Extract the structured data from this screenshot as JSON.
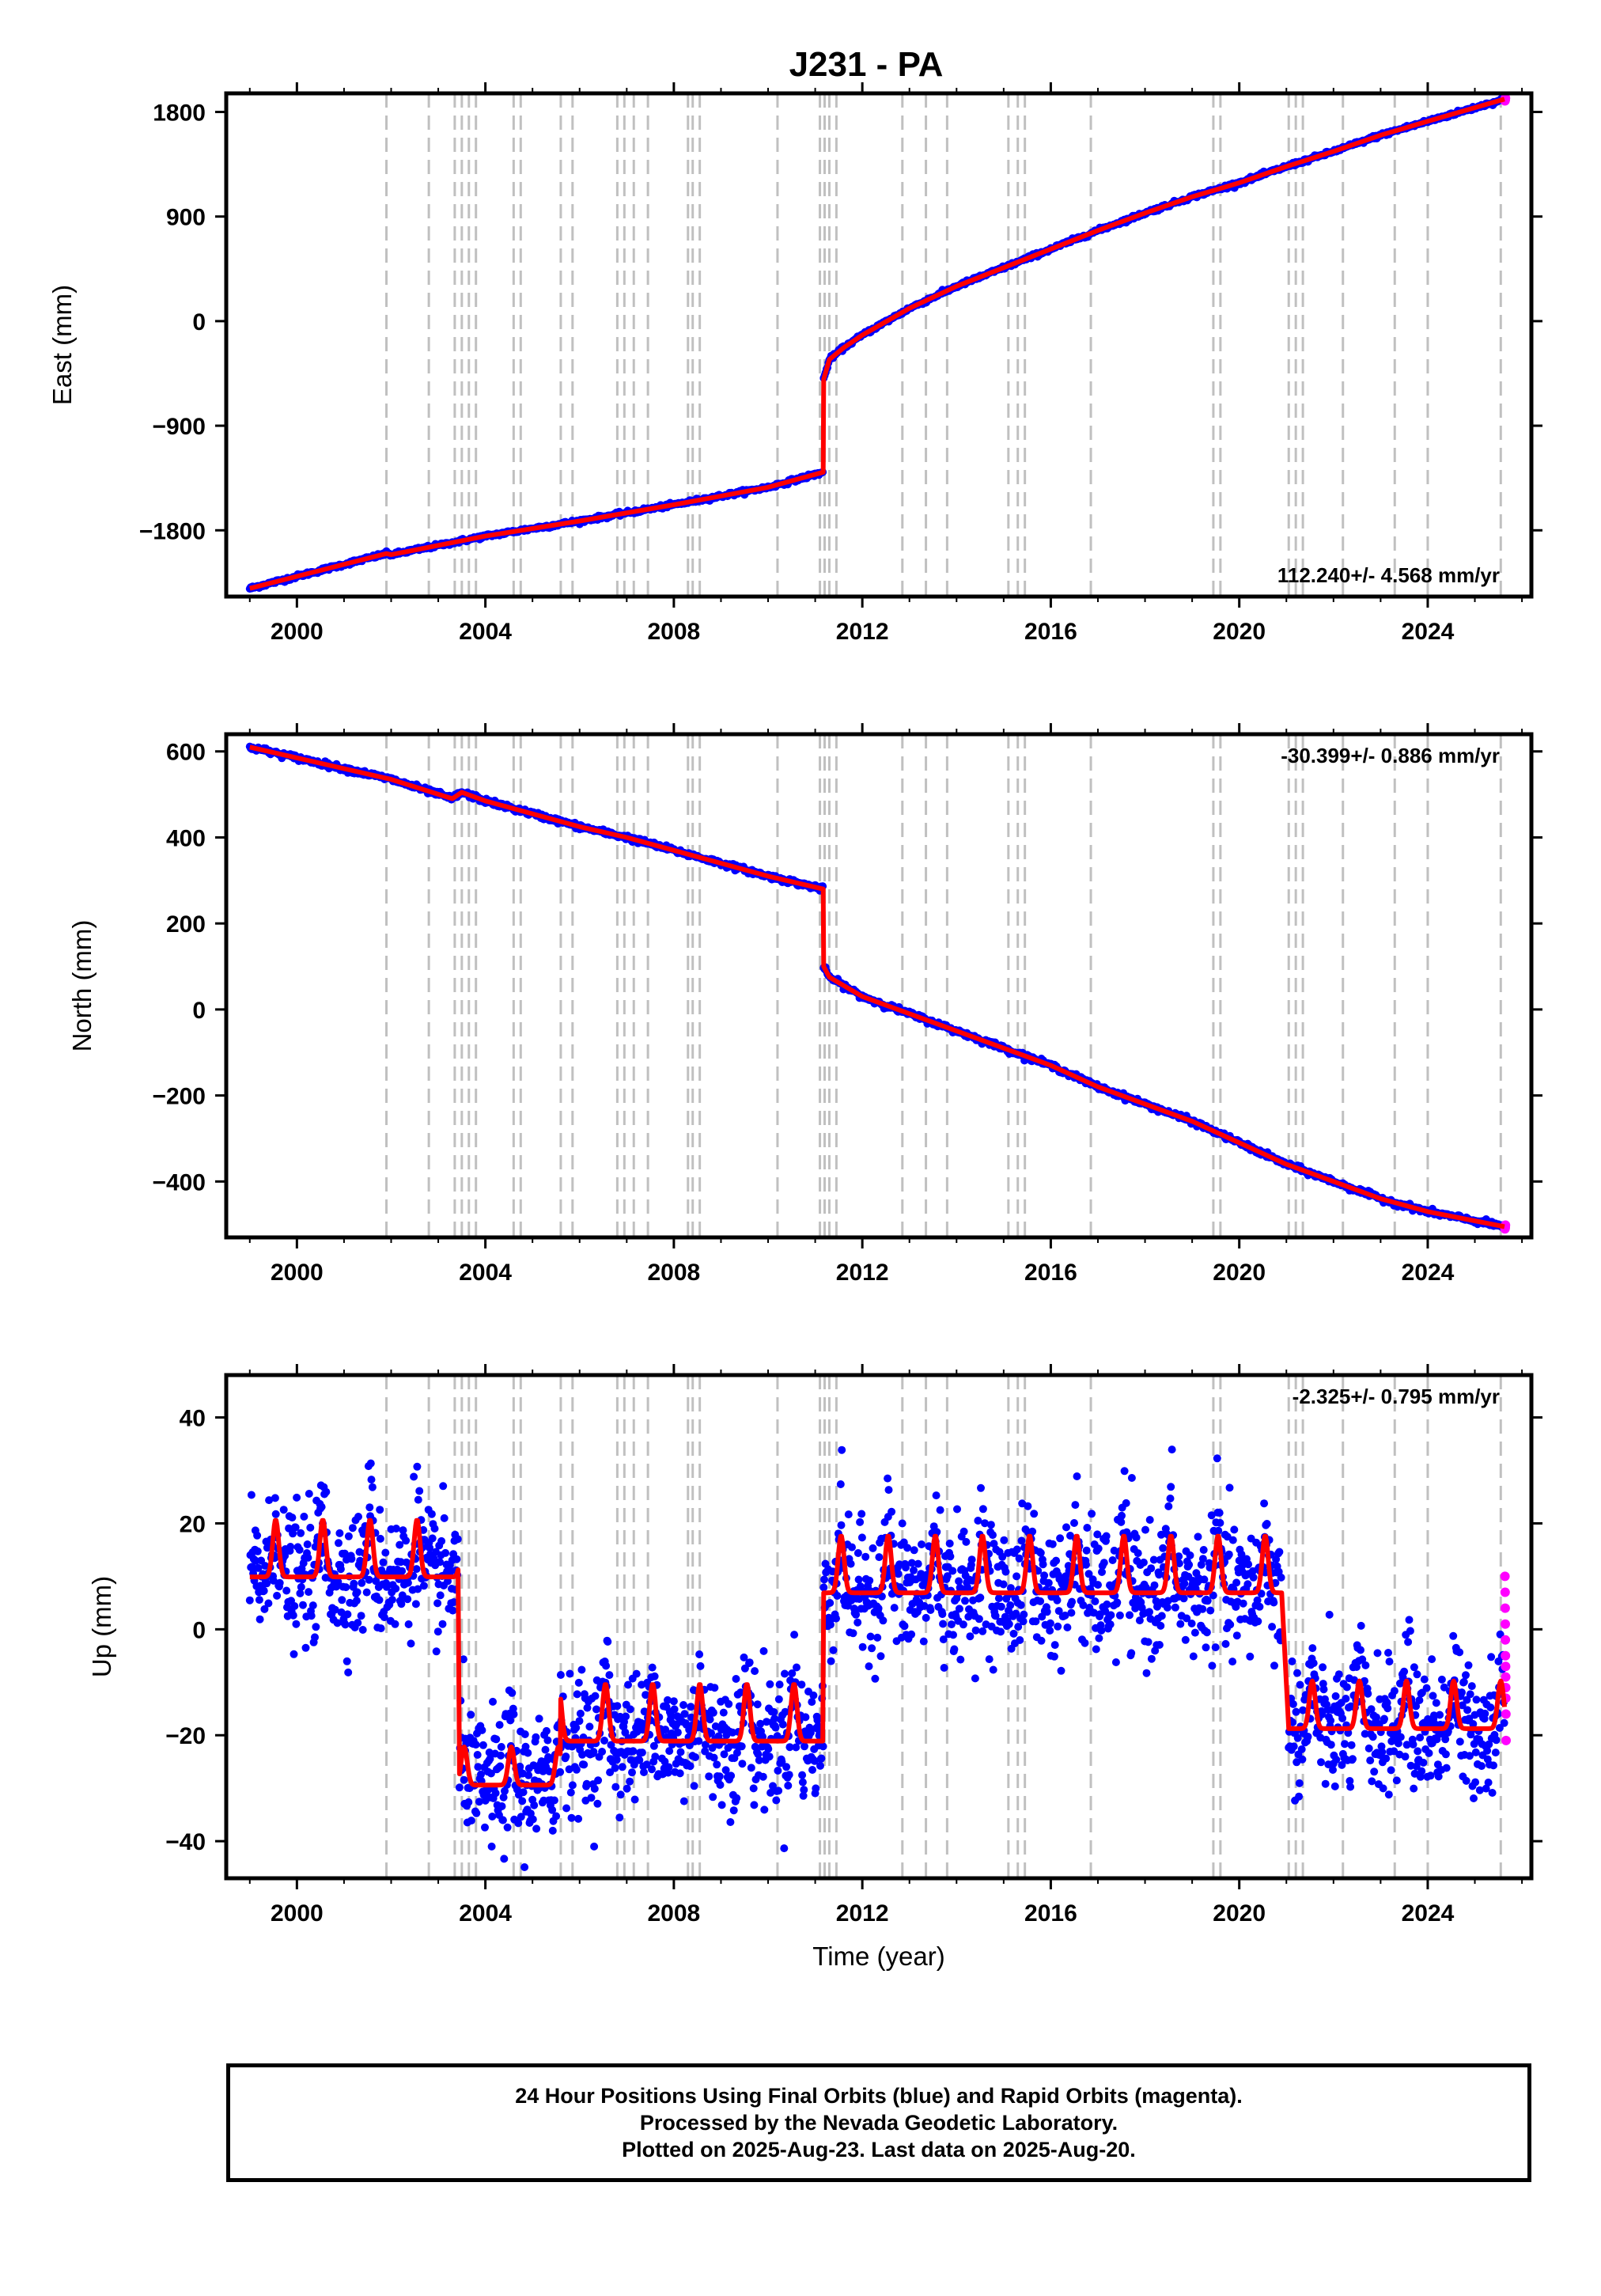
{
  "title": "J231 - PA",
  "colors": {
    "final": "#0000ff",
    "rapid": "#ff00ff",
    "model": "#ff0000",
    "event_line": "#c0c0c0"
  },
  "chart_data": [
    {
      "type": "scatter",
      "name": "east",
      "ylabel": "East (mm)",
      "xlabel": "",
      "xlim": [
        1998.5,
        2026.2
      ],
      "ylim": [
        -2370,
        1960
      ],
      "yticks": [
        -1800,
        -900,
        0,
        900,
        1800
      ],
      "ytick_labels": [
        "−1800",
        "−900",
        "0",
        "900",
        "1800"
      ],
      "xticks": [
        2000,
        2004,
        2008,
        2012,
        2016,
        2020,
        2024
      ],
      "xtick_labels": [
        "2000",
        "2004",
        "2008",
        "2012",
        "2016",
        "2020",
        "2024"
      ],
      "rate_label": "112.240+/- 4.568 mm/yr",
      "rate_position": "bottom-right",
      "model_points": [
        [
          1999.0,
          -2300
        ],
        [
          2001.9,
          -2000
        ],
        [
          2002.0,
          -2010
        ],
        [
          2004,
          -1850
        ],
        [
          2006,
          -1720
        ],
        [
          2008,
          -1580
        ],
        [
          2010,
          -1430
        ],
        [
          2011.17,
          -1300
        ],
        [
          2011.18,
          -500
        ],
        [
          2011.3,
          -330
        ],
        [
          2011.6,
          -230
        ],
        [
          2012,
          -120
        ],
        [
          2013,
          110
        ],
        [
          2014,
          300
        ],
        [
          2015,
          460
        ],
        [
          2016,
          620
        ],
        [
          2017,
          780
        ],
        [
          2018,
          930
        ],
        [
          2019,
          1070
        ],
        [
          2020,
          1190
        ],
        [
          2021,
          1330
        ],
        [
          2022,
          1460
        ],
        [
          2023,
          1600
        ],
        [
          2024,
          1720
        ],
        [
          2025.63,
          1910
        ]
      ],
      "noise": 8,
      "rapid_count": 6
    },
    {
      "type": "scatter",
      "name": "north",
      "ylabel": "North (mm)",
      "xlabel": "",
      "xlim": [
        1998.5,
        2026.2
      ],
      "ylim": [
        -530,
        640
      ],
      "yticks": [
        -400,
        -200,
        0,
        200,
        400,
        600
      ],
      "ytick_labels": [
        "−400",
        "−200",
        "0",
        "200",
        "400",
        "600"
      ],
      "xticks": [
        2000,
        2004,
        2008,
        2012,
        2016,
        2020,
        2024
      ],
      "xtick_labels": [
        "2000",
        "2004",
        "2008",
        "2012",
        "2016",
        "2020",
        "2024"
      ],
      "rate_label": "-30.399+/- 0.886 mm/yr",
      "rate_position": "top-right",
      "model_points": [
        [
          1999.0,
          610
        ],
        [
          2000,
          585
        ],
        [
          2001,
          560
        ],
        [
          2002,
          535
        ],
        [
          2003.3,
          490
        ],
        [
          2003.5,
          505
        ],
        [
          2004,
          485
        ],
        [
          2005,
          455
        ],
        [
          2006,
          425
        ],
        [
          2007,
          400
        ],
        [
          2008,
          370
        ],
        [
          2009,
          340
        ],
        [
          2010,
          310
        ],
        [
          2011.17,
          280
        ],
        [
          2011.18,
          100
        ],
        [
          2011.3,
          75
        ],
        [
          2012,
          30
        ],
        [
          2013,
          -10
        ],
        [
          2014,
          -50
        ],
        [
          2015,
          -90
        ],
        [
          2016,
          -130
        ],
        [
          2017,
          -180
        ],
        [
          2018,
          -220
        ],
        [
          2019,
          -260
        ],
        [
          2020,
          -310
        ],
        [
          2021,
          -360
        ],
        [
          2022,
          -400
        ],
        [
          2023,
          -440
        ],
        [
          2024,
          -470
        ],
        [
          2025.63,
          -505
        ]
      ],
      "noise": 3,
      "rapid_count": 6
    },
    {
      "type": "scatter",
      "name": "up",
      "ylabel": "Up (mm)",
      "xlabel": "Time (year)",
      "xlim": [
        1998.5,
        2026.2
      ],
      "ylim": [
        -47,
        48
      ],
      "yticks": [
        -40,
        -20,
        0,
        20,
        40
      ],
      "ytick_labels": [
        "−40",
        "−20",
        "0",
        "20",
        "40"
      ],
      "xticks": [
        2000,
        2004,
        2008,
        2012,
        2016,
        2020,
        2024
      ],
      "xtick_labels": [
        "2000",
        "2004",
        "2008",
        "2012",
        "2016",
        "2020",
        "2024"
      ],
      "rate_label": "-2.325+/- 0.795 mm/yr",
      "rate_position": "top-right",
      "segments": [
        {
          "start": 1999.0,
          "end": 2003.42,
          "level": 12,
          "amp": 6
        },
        {
          "start": 2003.45,
          "end": 2005.6,
          "level": -28,
          "amp": 4
        },
        {
          "start": 2005.6,
          "end": 2011.17,
          "level": -19,
          "amp": 6
        },
        {
          "start": 2011.18,
          "end": 2020.9,
          "level": 9,
          "amp": 6
        },
        {
          "start": 2021.05,
          "end": 2025.63,
          "level": -17,
          "amp": 5
        }
      ],
      "noise": 6,
      "rapid_count": 12,
      "rapid_values": [
        10,
        7,
        4,
        1,
        -2,
        -5,
        -7,
        -9,
        -11,
        -13,
        -16,
        -21
      ]
    }
  ],
  "event_years": [
    2001.9,
    2002.8,
    2003.35,
    2003.5,
    2003.65,
    2003.8,
    2004.6,
    2004.75,
    2005.6,
    2005.85,
    2006.8,
    2006.95,
    2007.15,
    2007.45,
    2008.3,
    2008.4,
    2008.55,
    2010.2,
    2011.1,
    2011.2,
    2011.3,
    2011.45,
    2012.85,
    2013.35,
    2013.8,
    2015.1,
    2015.3,
    2015.45,
    2016.85,
    2019.45,
    2019.6,
    2021.05,
    2021.2,
    2021.35,
    2022.2,
    2023.3,
    2024.0,
    2025.55
  ],
  "footer": {
    "line1": "24 Hour Positions Using Final Orbits (blue) and Rapid Orbits (magenta).",
    "line2": "Processed by the Nevada Geodetic Laboratory.",
    "line3": "Plotted on 2025-Aug-23. Last data on 2025-Aug-20."
  }
}
